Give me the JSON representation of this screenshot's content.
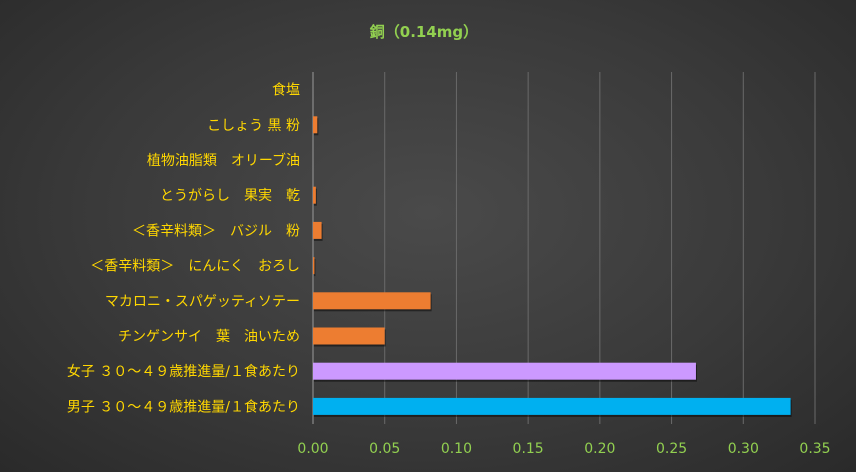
{
  "chart_data": {
    "type": "bar",
    "orientation": "horizontal",
    "title": "銅（0.14mg）",
    "categories": [
      "食塩",
      "こしょう 黒 粉",
      "植物油脂類　オリーブ油",
      "とうがらし　果実　乾",
      "＜香辛料類＞　バジル　粉",
      "＜香辛料類＞　にんにく　おろし",
      "マカロニ・スパゲッティソテー",
      "チンゲンサイ　葉　油いため",
      "女子 ３０～４９歳推進量/１食あたり",
      "男子 ３０～４９歳推進量/１食あたり"
    ],
    "values": [
      0.0,
      0.003,
      0.0,
      0.002,
      0.006,
      0.001,
      0.082,
      0.05,
      0.267,
      0.333
    ],
    "bar_colors": [
      "#ed7d31",
      "#ed7d31",
      "#ed7d31",
      "#ed7d31",
      "#ed7d31",
      "#ed7d31",
      "#ed7d31",
      "#ed7d31",
      "#cc99ff",
      "#00b0f0"
    ],
    "xlim": [
      0,
      0.35
    ],
    "x_ticks": [
      "0.00",
      "0.05",
      "0.10",
      "0.15",
      "0.20",
      "0.25",
      "0.30",
      "0.35"
    ],
    "x_tick_values": [
      0,
      0.05,
      0.1,
      0.15,
      0.2,
      0.25,
      0.3,
      0.35
    ],
    "grid": true,
    "legend": "none"
  }
}
